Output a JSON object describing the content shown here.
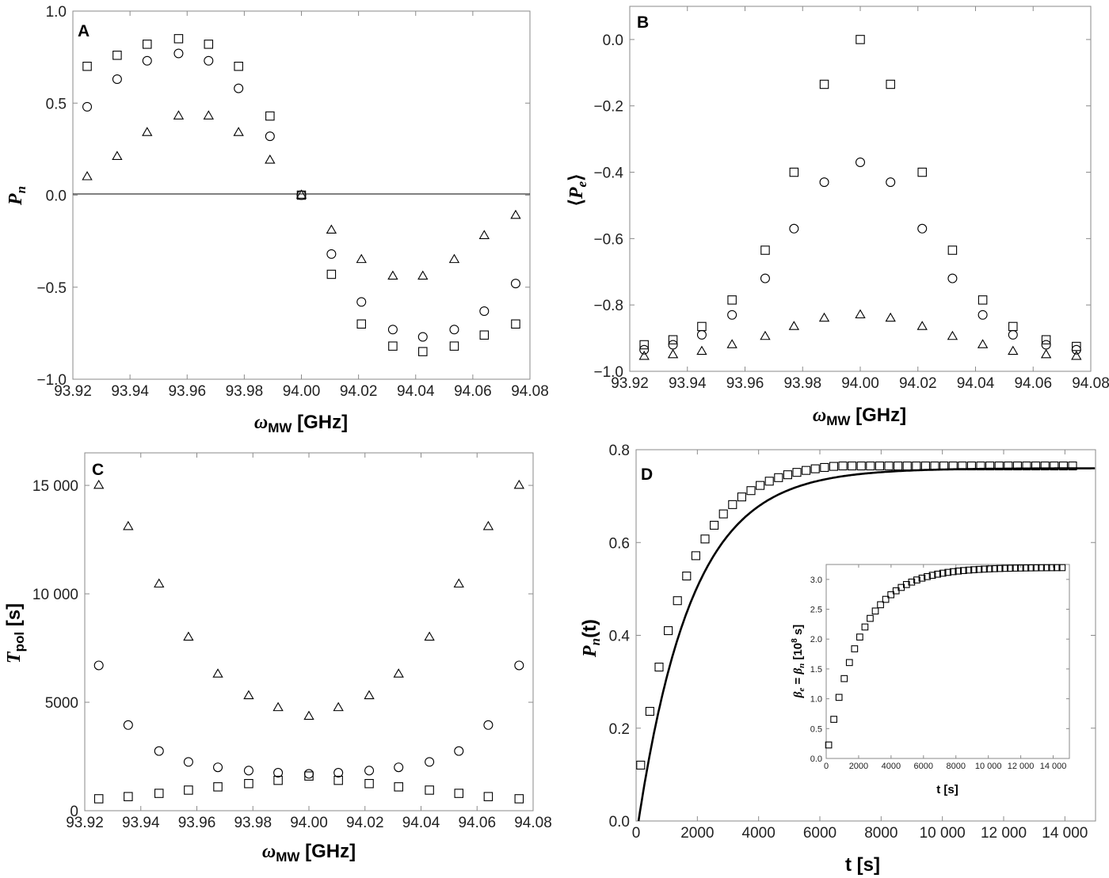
{
  "chart_data": [
    {
      "panel": "A",
      "type": "scatter",
      "xlabel": "ω_MW [GHz]",
      "xlabel_main": "ω",
      "xlabel_sub": "MW",
      "xlabel_unit": " [GHz]",
      "ylabel": "P_n",
      "ylabel_main": "P",
      "ylabel_sub": "n",
      "xlim": [
        93.92,
        94.08
      ],
      "ylim": [
        -1.0,
        1.0
      ],
      "xticks": [
        93.92,
        93.94,
        93.96,
        93.98,
        94.0,
        94.02,
        94.04,
        94.06,
        94.08
      ],
      "xtick_labels": [
        "93.92",
        "93.94",
        "93.96",
        "93.98",
        "94.00",
        "94.02",
        "94.04",
        "94.06",
        "94.08"
      ],
      "yticks": [
        -1.0,
        -0.5,
        0.0,
        0.5,
        1.0
      ],
      "ytick_labels": [
        "−1.0",
        "−0.5",
        "0.0",
        "0.5",
        "1.0"
      ],
      "zero_line": true,
      "x": [
        93.925,
        93.9355,
        93.946,
        93.957,
        93.9675,
        93.978,
        93.989,
        94.0,
        94.0105,
        94.021,
        94.032,
        94.0425,
        94.0535,
        94.064,
        94.075
      ],
      "series": [
        {
          "name": "squares",
          "marker": "square",
          "values": [
            0.7,
            0.76,
            0.82,
            0.85,
            0.82,
            0.7,
            0.43,
            0.0,
            -0.43,
            -0.7,
            -0.82,
            -0.85,
            -0.82,
            -0.76,
            -0.7
          ]
        },
        {
          "name": "circles",
          "marker": "circle",
          "values": [
            0.48,
            0.63,
            0.73,
            0.77,
            0.73,
            0.58,
            0.32,
            0.0,
            -0.32,
            -0.58,
            -0.73,
            -0.77,
            -0.73,
            -0.63,
            -0.48
          ]
        },
        {
          "name": "triangles",
          "marker": "triangle",
          "values": [
            0.1,
            0.21,
            0.34,
            0.43,
            0.43,
            0.34,
            0.19,
            0.0,
            -0.19,
            -0.35,
            -0.44,
            -0.44,
            -0.35,
            -0.22,
            -0.11
          ]
        }
      ]
    },
    {
      "panel": "B",
      "type": "scatter",
      "xlabel": "ω_MW [GHz]",
      "xlabel_main": "ω",
      "xlabel_sub": "MW",
      "xlabel_unit": " [GHz]",
      "ylabel": "⟨P_e⟩",
      "ylabel_open": "⟨",
      "ylabel_main": "P",
      "ylabel_sub": "e",
      "ylabel_close": "⟩",
      "xlim": [
        93.92,
        94.08
      ],
      "ylim": [
        -1.0,
        0.1
      ],
      "xticks": [
        93.92,
        93.94,
        93.96,
        93.98,
        94.0,
        94.02,
        94.04,
        94.06,
        94.08
      ],
      "xtick_labels": [
        "93.92",
        "93.94",
        "93.96",
        "93.98",
        "94.00",
        "94.02",
        "94.04",
        "94.06",
        "94.08"
      ],
      "yticks": [
        -1.0,
        -0.8,
        -0.6,
        -0.4,
        -0.2,
        0.0
      ],
      "ytick_labels": [
        "−1.0",
        "−0.8",
        "−0.6",
        "−0.4",
        "−0.2",
        "0.0"
      ],
      "x": [
        93.925,
        93.935,
        93.945,
        93.9555,
        93.967,
        93.977,
        93.9875,
        94.0,
        94.0105,
        94.0215,
        94.032,
        94.0425,
        94.053,
        94.0645,
        94.075
      ],
      "series": [
        {
          "name": "squares",
          "marker": "square",
          "values": [
            -0.92,
            -0.905,
            -0.865,
            -0.785,
            -0.635,
            -0.4,
            -0.135,
            0.0,
            -0.135,
            -0.4,
            -0.635,
            -0.785,
            -0.865,
            -0.905,
            -0.925
          ]
        },
        {
          "name": "circles",
          "marker": "circle",
          "values": [
            -0.935,
            -0.92,
            -0.89,
            -0.83,
            -0.72,
            -0.57,
            -0.43,
            -0.37,
            -0.43,
            -0.57,
            -0.72,
            -0.83,
            -0.89,
            -0.92,
            -0.935
          ]
        },
        {
          "name": "triangles",
          "marker": "triangle",
          "values": [
            -0.955,
            -0.95,
            -0.94,
            -0.92,
            -0.895,
            -0.865,
            -0.84,
            -0.83,
            -0.84,
            -0.865,
            -0.895,
            -0.92,
            -0.94,
            -0.95,
            -0.955
          ]
        }
      ]
    },
    {
      "panel": "C",
      "type": "scatter",
      "xlabel": "ω_MW [GHz]",
      "xlabel_main": "ω",
      "xlabel_sub": "MW",
      "xlabel_unit": " [GHz]",
      "ylabel": "T_pol [s]",
      "ylabel_main": "T",
      "ylabel_sub": "pol",
      "ylabel_unit": " [s]",
      "xlim": [
        93.92,
        94.08
      ],
      "ylim": [
        0,
        16500
      ],
      "xticks": [
        93.92,
        93.94,
        93.96,
        93.98,
        94.0,
        94.02,
        94.04,
        94.06,
        94.08
      ],
      "xtick_labels": [
        "93.92",
        "93.94",
        "93.96",
        "93.98",
        "94.00",
        "94.02",
        "94.04",
        "94.06",
        "94.08"
      ],
      "yticks": [
        0,
        5000,
        10000,
        15000
      ],
      "ytick_labels": [
        "0",
        "5000",
        "10 000",
        "15 000"
      ],
      "x": [
        93.925,
        93.9355,
        93.9465,
        93.957,
        93.9675,
        93.9785,
        93.989,
        94.0,
        94.0105,
        94.0215,
        94.032,
        94.043,
        94.0535,
        94.064,
        94.075
      ],
      "series": [
        {
          "name": "squares",
          "marker": "square",
          "values": [
            550,
            650,
            800,
            950,
            1100,
            1250,
            1400,
            1600,
            1400,
            1250,
            1100,
            950,
            800,
            650,
            550
          ]
        },
        {
          "name": "circles",
          "marker": "circle",
          "values": [
            6700,
            3950,
            2750,
            2250,
            2000,
            1850,
            1750,
            1700,
            1750,
            1850,
            2000,
            2250,
            2750,
            3950,
            6700
          ]
        },
        {
          "name": "triangles",
          "marker": "triangle",
          "values": [
            15000,
            13100,
            10450,
            8000,
            6300,
            5300,
            4750,
            4350,
            4750,
            5300,
            6300,
            8000,
            10450,
            13100,
            15000
          ]
        }
      ]
    },
    {
      "panel": "D",
      "type": "scatter",
      "xlabel": "t [s]",
      "xlabel_main": "t [s]",
      "ylabel": "P_n(t)",
      "ylabel_main": "P",
      "ylabel_sub": "n",
      "ylabel_tail": "(t)",
      "xlim": [
        0,
        15000
      ],
      "ylim": [
        0.0,
        0.8
      ],
      "xticks": [
        0,
        2000,
        4000,
        6000,
        8000,
        10000,
        12000,
        14000
      ],
      "xtick_labels": [
        "0",
        "2000",
        "4000",
        "6000",
        "8000",
        "10 000",
        "12 000",
        "14 000"
      ],
      "yticks": [
        0.0,
        0.2,
        0.4,
        0.6,
        0.8
      ],
      "ytick_labels": [
        "0.0",
        "0.2",
        "0.4",
        "0.6",
        "0.8"
      ],
      "points": {
        "name": "squares",
        "marker": "square",
        "x_start": 150,
        "x_step": 300,
        "count": 48,
        "amplitude": 0.775,
        "tau": 1540,
        "t0": -110,
        "cap": 0.765
      },
      "fit": {
        "name": "fit-curve",
        "style": "solid",
        "amplitude": 0.76,
        "tau": 1760,
        "t0": 80,
        "x_end": 15000
      },
      "inset": {
        "type": "scatter",
        "xlabel": "t [s]",
        "ylabel": "β_e = β_n [10^8 s]",
        "ylabel_beta": "β",
        "ylabel_e": "e",
        "ylabel_eq": " = ",
        "ylabel_n": "n",
        "ylabel_unit_a": " [10",
        "ylabel_exp": "8",
        "ylabel_unit_b": " s]",
        "xlim": [
          0,
          15000
        ],
        "ylim": [
          0.0,
          3.25
        ],
        "xticks": [
          0,
          2000,
          4000,
          6000,
          8000,
          10000,
          12000,
          14000
        ],
        "xtick_labels": [
          "0",
          "2000",
          "4000",
          "6000",
          "8000",
          "10 000",
          "12 000",
          "14 000"
        ],
        "yticks": [
          0.0,
          0.5,
          1.0,
          1.5,
          2.0,
          2.5,
          3.0
        ],
        "ytick_labels": [
          "0.0",
          "0.5",
          "1.0",
          "1.5",
          "2.0",
          "2.5",
          "3.0"
        ],
        "points": {
          "name": "squares",
          "marker": "square",
          "x_start": 150,
          "x_step": 320,
          "count": 46,
          "amplitude": 3.2,
          "tau": 2050,
          "t0": 0
        }
      }
    }
  ]
}
